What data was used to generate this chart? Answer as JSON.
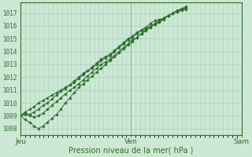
{
  "title": "",
  "xlabel": "Pression niveau de la mer( hPa )",
  "ylabel": "",
  "bg_color": "#cce8d4",
  "grid_color": "#aacfb8",
  "line_color": "#2d6e2d",
  "marker_color": "#2d6e2d",
  "ylim": [
    1007.5,
    1017.8
  ],
  "xlim": [
    0,
    48
  ],
  "yticks": [
    1008,
    1009,
    1010,
    1011,
    1012,
    1013,
    1014,
    1015,
    1016,
    1017
  ],
  "xtick_labels": [
    "Jeu",
    "Ven",
    "Sam"
  ],
  "xtick_positions": [
    0,
    24,
    48
  ],
  "series": [
    [
      1009.0,
      1009.2,
      1009.1,
      1009.3,
      1009.5,
      1009.8,
      1010.0,
      1010.3,
      1010.6,
      1010.9,
      1011.1,
      1011.4,
      1011.7,
      1012.0,
      1012.3,
      1012.5,
      1012.7,
      1013.0,
      1013.3,
      1013.5,
      1013.7,
      1014.0,
      1014.3,
      1014.6,
      1014.9,
      1015.1,
      1015.4,
      1015.6,
      1015.8,
      1016.0,
      1016.2,
      1016.4,
      1016.6,
      1016.8,
      1017.0,
      1017.15,
      1017.3,
      1017.4
    ],
    [
      1009.0,
      1008.7,
      1008.5,
      1008.2,
      1008.0,
      1008.2,
      1008.5,
      1008.8,
      1009.1,
      1009.5,
      1010.0,
      1010.4,
      1010.8,
      1011.2,
      1011.5,
      1011.8,
      1012.1,
      1012.4,
      1012.7,
      1013.0,
      1013.3,
      1013.6,
      1013.9,
      1014.2,
      1014.5,
      1014.8,
      1015.1,
      1015.4,
      1015.7,
      1015.9,
      1016.1,
      1016.3,
      1016.5,
      1016.8,
      1017.0,
      1017.2,
      1017.35,
      1017.5
    ],
    [
      1009.0,
      1009.1,
      1009.0,
      1008.9,
      1009.0,
      1009.2,
      1009.5,
      1009.8,
      1010.1,
      1010.4,
      1010.7,
      1011.0,
      1011.2,
      1011.5,
      1011.8,
      1012.1,
      1012.4,
      1012.7,
      1013.0,
      1013.2,
      1013.4,
      1013.7,
      1014.0,
      1014.3,
      1014.6,
      1014.9,
      1015.1,
      1015.4,
      1015.6,
      1015.9,
      1016.1,
      1016.3,
      1016.6,
      1016.8,
      1017.0,
      1017.1,
      1017.25,
      1017.4
    ],
    [
      1009.0,
      1009.3,
      1009.5,
      1009.7,
      1010.0,
      1010.2,
      1010.4,
      1010.6,
      1010.8,
      1011.0,
      1011.2,
      1011.4,
      1011.6,
      1011.9,
      1012.2,
      1012.5,
      1012.8,
      1013.1,
      1013.4,
      1013.6,
      1013.8,
      1014.1,
      1014.4,
      1014.7,
      1015.0,
      1015.2,
      1015.5,
      1015.7,
      1015.9,
      1016.2,
      1016.4,
      1016.5,
      1016.6,
      1016.8,
      1017.0,
      1017.1,
      1017.2,
      1017.3
    ]
  ],
  "series_xend": [
    36,
    36,
    36,
    36
  ]
}
